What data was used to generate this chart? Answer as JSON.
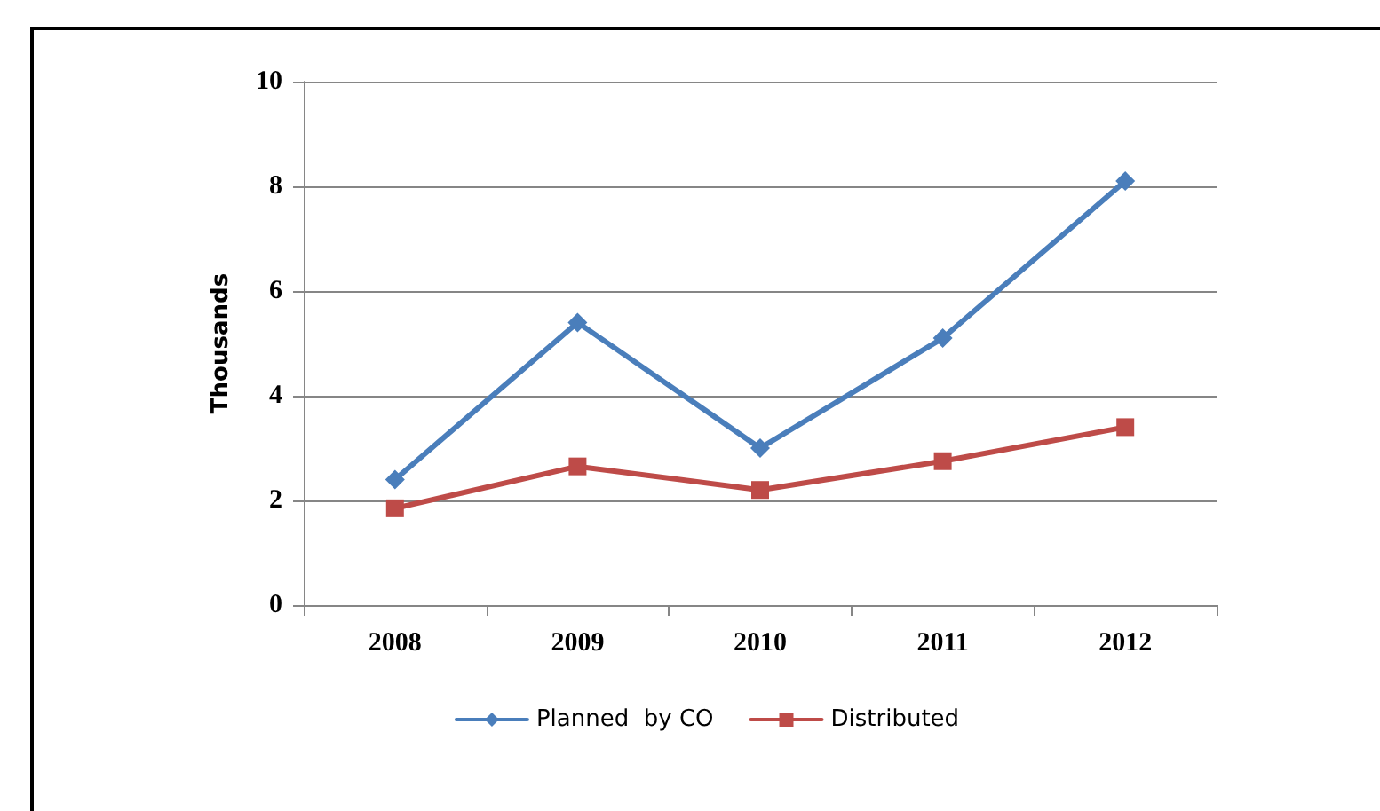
{
  "chart_data": {
    "type": "line",
    "ylabel": "Thousands",
    "categories": [
      "2008",
      "2009",
      "2010",
      "2011",
      "2012"
    ],
    "series": [
      {
        "name": "Planned  by CO",
        "color": "#4a7ebb",
        "marker": "diamond",
        "values": [
          2.4,
          5.4,
          3.0,
          5.1,
          8.1
        ]
      },
      {
        "name": "Distributed",
        "color": "#be4b48",
        "marker": "square",
        "values": [
          1.85,
          2.65,
          2.2,
          2.75,
          3.4
        ]
      }
    ],
    "ylim": [
      0,
      10
    ],
    "yticks": [
      0,
      2,
      4,
      6,
      8,
      10
    ],
    "grid": "y",
    "legend": "bottom"
  }
}
